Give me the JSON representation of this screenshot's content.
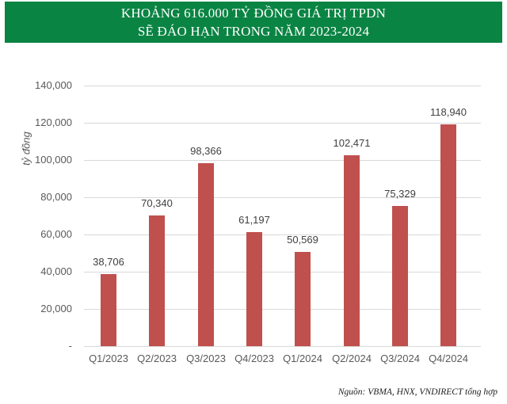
{
  "header": {
    "title_line1": "KHOẢNG 616.000 TỶ ĐỒNG GIÁ TRỊ TPDN",
    "title_line2": "SẼ ĐÁO HẠN TRONG NĂM 2023-2024",
    "background_color": "#0a8443"
  },
  "axis": {
    "ylabel": "tỷ đồng",
    "yticks": [
      "140,000",
      "120,000",
      "100,000",
      "80,000",
      "60,000",
      "40,000",
      "20,000",
      "-"
    ]
  },
  "footer": {
    "source": "Nguồn: VBMA, HNX, VNDIRECT tổng hợp"
  },
  "bars": [
    {
      "label": "Q1/2023",
      "value_label": "38,706"
    },
    {
      "label": "Q2/2023",
      "value_label": "70,340"
    },
    {
      "label": "Q3/2023",
      "value_label": "98,366"
    },
    {
      "label": "Q4/2023",
      "value_label": "61,197"
    },
    {
      "label": "Q1/2024",
      "value_label": "50,569"
    },
    {
      "label": "Q2/2024",
      "value_label": "102,471"
    },
    {
      "label": "Q3/2024",
      "value_label": "75,329"
    },
    {
      "label": "Q4/2024",
      "value_label": "118,940"
    }
  ],
  "chart_data": {
    "type": "bar",
    "title": "KHOẢNG 616.000 TỶ ĐỒNG GIÁ TRỊ TPDN SẼ ĐÁO HẠN TRONG NĂM 2023-2024",
    "categories": [
      "Q1/2023",
      "Q2/2023",
      "Q3/2023",
      "Q4/2023",
      "Q1/2024",
      "Q2/2024",
      "Q3/2024",
      "Q4/2024"
    ],
    "values": [
      38706,
      70340,
      98366,
      61197,
      50569,
      102471,
      75329,
      118940
    ],
    "xlabel": "",
    "ylabel": "tỷ đồng",
    "ylim": [
      0,
      140000
    ],
    "yticks": [
      0,
      20000,
      40000,
      60000,
      80000,
      100000,
      120000,
      140000
    ],
    "grid": true,
    "legend": null,
    "bar_color": "#c0504d",
    "data_labels": true,
    "annotations": [
      "Nguồn: VBMA, HNX, VNDIRECT tổng hợp"
    ]
  }
}
